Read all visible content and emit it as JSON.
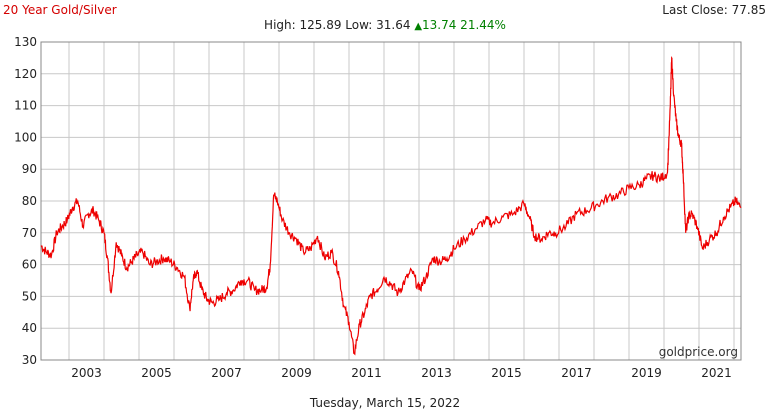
{
  "header": {
    "title": "20 Year Gold/Silver",
    "last_close_label": "Last Close: 77.85",
    "stats_high_low": "High: 125.89 Low: 31.64",
    "change_arrow": "▲",
    "change_value": "13.74 21.44%"
  },
  "footer": {
    "date": "Tuesday, March 15, 2022",
    "watermark": "goldprice.org"
  },
  "colors": {
    "title": "#d40000",
    "line": "#ee0000",
    "up": "#008000",
    "grid": "#c8c8c8",
    "axis": "#888888",
    "text": "#222222"
  },
  "chart_data": {
    "type": "line",
    "title": "20 Year Gold/Silver",
    "xlabel": "",
    "ylabel": "",
    "ylim": [
      30,
      130
    ],
    "xlim": [
      2002.2,
      2022.2
    ],
    "y_ticks": [
      "30",
      "40",
      "50",
      "60",
      "70",
      "80",
      "90",
      "100",
      "110",
      "120",
      "130"
    ],
    "x_ticks": [
      "2003",
      "2005",
      "2007",
      "2009",
      "2011",
      "2013",
      "2015",
      "2017",
      "2019",
      "2021"
    ],
    "grid": true,
    "legend": "none",
    "series": [
      {
        "x": [
          2002.2,
          2002.35,
          2002.5,
          2002.65,
          2002.8,
          2002.95,
          2003.1,
          2003.25,
          2003.4,
          2003.55,
          2003.7,
          2003.85,
          2004.0,
          2004.1,
          2004.2,
          2004.35,
          2004.5,
          2004.65,
          2004.8,
          2004.95,
          2005.1,
          2005.3,
          2005.5,
          2005.7,
          2005.9,
          2006.1,
          2006.3,
          2006.45,
          2006.55,
          2006.65,
          2006.8,
          2006.95,
          2007.1,
          2007.3,
          2007.5,
          2007.7,
          2007.9,
          2008.1,
          2008.3,
          2008.5,
          2008.65,
          2008.75,
          2008.85,
          2008.95,
          2009.1,
          2009.3,
          2009.5,
          2009.7,
          2009.9,
          2010.1,
          2010.3,
          2010.5,
          2010.7,
          2010.85,
          2011.0,
          2011.15,
          2011.3,
          2011.45,
          2011.6,
          2011.8,
          2012.0,
          2012.2,
          2012.4,
          2012.6,
          2012.8,
          2013.0,
          2013.2,
          2013.4,
          2013.6,
          2013.8,
          2014.0,
          2014.3,
          2014.6,
          2014.9,
          2015.1,
          2015.4,
          2015.7,
          2016.0,
          2016.15,
          2016.3,
          2016.5,
          2016.7,
          2016.9,
          2017.2,
          2017.5,
          2017.8,
          2018.1,
          2018.4,
          2018.7,
          2019.0,
          2019.3,
          2019.5,
          2019.7,
          2019.9,
          2020.1,
          2020.18,
          2020.22,
          2020.28,
          2020.35,
          2020.42,
          2020.5,
          2020.55,
          2020.62,
          2020.7,
          2020.8,
          2020.95,
          2021.1,
          2021.3,
          2021.5,
          2021.7,
          2021.9,
          2022.05,
          2022.2
        ],
        "values": [
          66,
          64,
          63,
          70,
          72,
          74,
          78,
          80,
          72,
          76,
          77,
          74,
          70,
          62,
          51,
          67,
          63,
          59,
          61,
          63,
          64,
          60,
          61,
          62,
          61,
          59,
          56,
          46,
          55,
          58,
          52,
          49,
          48,
          49,
          51,
          52,
          55,
          55,
          52,
          52,
          53,
          60,
          82,
          80,
          74,
          70,
          68,
          64,
          65,
          69,
          62,
          64,
          58,
          47,
          42,
          32,
          41,
          45,
          50,
          52,
          56,
          54,
          51,
          55,
          58,
          52,
          56,
          62,
          61,
          62,
          65,
          68,
          71,
          74,
          73,
          75,
          76,
          79,
          75,
          69,
          68,
          70,
          70,
          72,
          76,
          77,
          79,
          81,
          82,
          84,
          85,
          87,
          88,
          87,
          89,
          110,
          125,
          113,
          105,
          100,
          98,
          88,
          70,
          75,
          76,
          72,
          65,
          68,
          70,
          75,
          78,
          80,
          77.85
        ]
      }
    ]
  }
}
